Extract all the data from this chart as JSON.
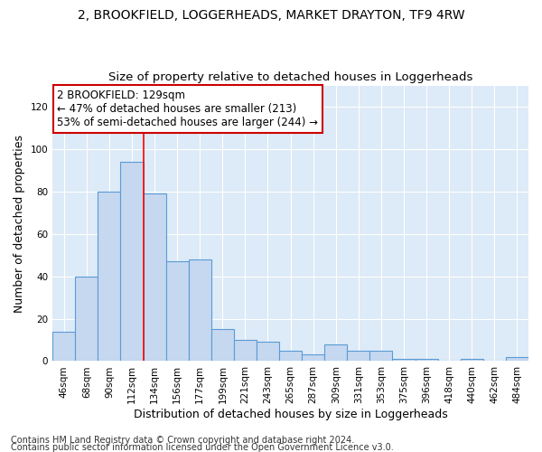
{
  "title_line1": "2, BROOKFIELD, LOGGERHEADS, MARKET DRAYTON, TF9 4RW",
  "title_line2": "Size of property relative to detached houses in Loggerheads",
  "xlabel": "Distribution of detached houses by size in Loggerheads",
  "ylabel": "Number of detached properties",
  "categories": [
    "46sqm",
    "68sqm",
    "90sqm",
    "112sqm",
    "134sqm",
    "156sqm",
    "177sqm",
    "199sqm",
    "221sqm",
    "243sqm",
    "265sqm",
    "287sqm",
    "309sqm",
    "331sqm",
    "353sqm",
    "375sqm",
    "396sqm",
    "418sqm",
    "440sqm",
    "462sqm",
    "484sqm"
  ],
  "values": [
    14,
    40,
    80,
    94,
    79,
    47,
    48,
    15,
    10,
    9,
    5,
    3,
    8,
    5,
    5,
    1,
    1,
    0,
    1,
    0,
    2
  ],
  "bar_color": "#c5d8f0",
  "bar_edge_color": "#5b9bd5",
  "ylim": [
    0,
    130
  ],
  "yticks": [
    0,
    20,
    40,
    60,
    80,
    100,
    120
  ],
  "red_line_x": 3.5,
  "annotation_line1": "2 BROOKFIELD: 129sqm",
  "annotation_line2": "← 47% of detached houses are smaller (213)",
  "annotation_line3": "53% of semi-detached houses are larger (244) →",
  "annotation_box_color": "#ffffff",
  "annotation_box_edge": "#cc0000",
  "footer_line1": "Contains HM Land Registry data © Crown copyright and database right 2024.",
  "footer_line2": "Contains public sector information licensed under the Open Government Licence v3.0.",
  "bg_color": "#ddeaf7",
  "title_fontsize": 10,
  "subtitle_fontsize": 9.5,
  "xlabel_fontsize": 9,
  "ylabel_fontsize": 9,
  "tick_fontsize": 7.5,
  "annotation_fontsize": 8.5,
  "footer_fontsize": 7
}
